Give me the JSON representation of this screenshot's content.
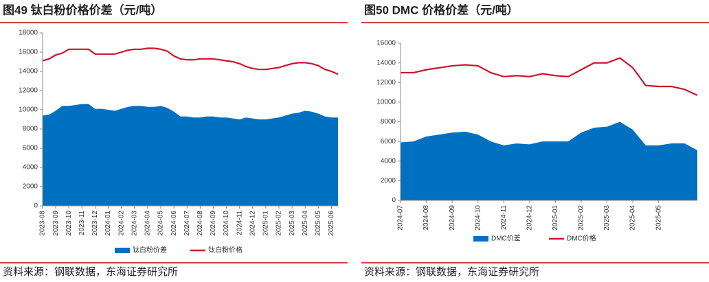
{
  "chart_data": [
    {
      "type": "line",
      "title": "图49  钛白粉价格价差（元/吨）",
      "source": "资料来源：钢联数据，东海证券研究所",
      "categories": [
        "2023-08",
        null,
        "2023-09",
        null,
        "2023-10",
        null,
        "2023-11",
        null,
        "2023-12",
        null,
        "2024-01",
        null,
        "2024-02",
        null,
        "2024-03",
        null,
        "2024-04",
        null,
        "2024-05",
        null,
        "2024-06",
        null,
        "2024-07",
        null,
        "2024-08",
        null,
        "2024-09",
        null,
        "2024-10",
        null,
        "2024-11",
        null,
        "2024-12",
        null,
        "2025-01",
        null,
        "2025-02",
        null,
        "2025-03",
        null,
        "2025-04",
        null,
        "2025-05",
        null,
        "2025-06",
        null
      ],
      "ylim": [
        0,
        18000
      ],
      "yticks": [
        0,
        2000,
        4000,
        6000,
        8000,
        10000,
        12000,
        14000,
        16000,
        18000
      ],
      "series": [
        {
          "name": "钛白粉价差",
          "type": "area",
          "color": "#0070c0",
          "values": [
            9400,
            9500,
            9900,
            10400,
            10400,
            10500,
            10600,
            10600,
            10100,
            10100,
            10000,
            9900,
            10100,
            10300,
            10400,
            10400,
            10300,
            10300,
            10400,
            10200,
            9800,
            9300,
            9300,
            9200,
            9200,
            9300,
            9300,
            9200,
            9200,
            9100,
            9000,
            9200,
            9100,
            9000,
            9000,
            9100,
            9200,
            9400,
            9600,
            9700,
            9900,
            9800,
            9600,
            9300,
            9200,
            9200
          ]
        },
        {
          "name": "钛白粉价格",
          "type": "line",
          "color": "#d0112b",
          "values": [
            15100,
            15300,
            15700,
            15900,
            16300,
            16300,
            16300,
            16300,
            15800,
            15800,
            15800,
            15800,
            16000,
            16200,
            16300,
            16300,
            16400,
            16400,
            16300,
            16100,
            15600,
            15300,
            15200,
            15200,
            15300,
            15300,
            15300,
            15200,
            15100,
            15000,
            14800,
            14500,
            14300,
            14200,
            14200,
            14300,
            14400,
            14600,
            14800,
            14900,
            14900,
            14800,
            14600,
            14200,
            14000,
            13700
          ]
        }
      ]
    },
    {
      "type": "line",
      "title": "图50  DMC 价格价差（元/吨）",
      "source": "资料来源：钢联数据，东海证券研究所",
      "categories": [
        "2024-07",
        null,
        "2024-08",
        null,
        "2024-09",
        null,
        "2024-10",
        null,
        "2024-11",
        null,
        "2024-12",
        null,
        "2025-01",
        null,
        "2025-02",
        null,
        "2025-03",
        null,
        "2025-04",
        null,
        "2025-05",
        null,
        null,
        null
      ],
      "ylim": [
        0,
        16000
      ],
      "yticks": [
        0,
        2000,
        4000,
        6000,
        8000,
        10000,
        12000,
        14000,
        16000
      ],
      "series": [
        {
          "name": "DMC价差",
          "type": "area",
          "color": "#0070c0",
          "values": [
            5900,
            6000,
            6500,
            6700,
            6900,
            7000,
            6700,
            6000,
            5600,
            5800,
            5700,
            6000,
            6000,
            6000,
            6900,
            7400,
            7500,
            8000,
            7200,
            5600,
            5600,
            5800,
            5800,
            5100
          ]
        },
        {
          "name": "DMC价格",
          "type": "line",
          "color": "#d0112b",
          "values": [
            13000,
            13000,
            13300,
            13500,
            13700,
            13800,
            13700,
            13000,
            12600,
            12700,
            12600,
            12900,
            12700,
            12600,
            13300,
            14000,
            14000,
            14500,
            13500,
            11700,
            11600,
            11600,
            11300,
            10700
          ]
        }
      ]
    }
  ]
}
